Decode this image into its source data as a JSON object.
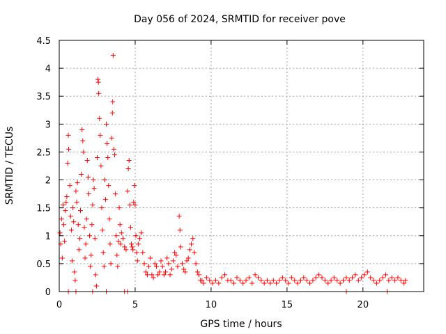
{
  "chart_data": {
    "type": "scatter",
    "title": "Day 056 of 2024, SRMTID for receiver pove",
    "xlabel": "GPS time / hours",
    "ylabel": "SRMTID / TECUs",
    "xlim": [
      0,
      24
    ],
    "ylim": [
      0,
      4.5
    ],
    "x_ticks": [
      "0",
      "5",
      "10",
      "15",
      "20"
    ],
    "y_ticks": [
      "0",
      "0.5",
      "1",
      "1.5",
      "2",
      "2.5",
      "3",
      "3.5",
      "4",
      "4.5"
    ],
    "grid": true,
    "marker": "plus",
    "color": "#ff0000",
    "series": [
      {
        "points": [
          [
            0.05,
            1.05
          ],
          [
            0.1,
            0.85
          ],
          [
            0.15,
            1.3
          ],
          [
            0.2,
            0.6
          ],
          [
            0.25,
            1.55
          ],
          [
            0.3,
            1.2
          ],
          [
            0.35,
            0.9
          ],
          [
            0.4,
            1.45
          ],
          [
            0.45,
            1.6
          ],
          [
            0.5,
            1.7
          ],
          [
            0.55,
            2.3
          ],
          [
            0.6,
            2.8
          ],
          [
            0.62,
            2.55
          ],
          [
            0.7,
            1.9
          ],
          [
            0.75,
            1.35
          ],
          [
            0.8,
            1.1
          ],
          [
            0.85,
            0.55
          ],
          [
            0.9,
            1.5
          ],
          [
            0.95,
            1.25
          ],
          [
            1.0,
            0.35
          ],
          [
            1.05,
            0.2
          ],
          [
            1.1,
            1.8
          ],
          [
            1.15,
            1.6
          ],
          [
            1.2,
            1.95
          ],
          [
            1.25,
            1.2
          ],
          [
            1.3,
            0.75
          ],
          [
            1.35,
            0.95
          ],
          [
            1.4,
            1.45
          ],
          [
            1.45,
            2.1
          ],
          [
            1.5,
            2.9
          ],
          [
            1.55,
            2.7
          ],
          [
            1.6,
            2.5
          ],
          [
            1.65,
            1.15
          ],
          [
            1.7,
            0.6
          ],
          [
            1.75,
            0.85
          ],
          [
            1.8,
            1.3
          ],
          [
            1.85,
            2.35
          ],
          [
            1.9,
            2.05
          ],
          [
            1.95,
            1.75
          ],
          [
            2.0,
            1.0
          ],
          [
            2.05,
            0.45
          ],
          [
            2.1,
            0.65
          ],
          [
            2.15,
            1.2
          ],
          [
            2.2,
            1.55
          ],
          [
            2.25,
            2.0
          ],
          [
            2.3,
            1.85
          ],
          [
            2.35,
            0.95
          ],
          [
            2.4,
            0.3
          ],
          [
            2.45,
            0.1
          ],
          [
            2.5,
            2.4
          ],
          [
            2.55,
            3.8
          ],
          [
            2.58,
            3.75
          ],
          [
            2.6,
            3.55
          ],
          [
            2.65,
            3.1
          ],
          [
            2.7,
            2.8
          ],
          [
            2.75,
            2.25
          ],
          [
            2.8,
            1.5
          ],
          [
            2.85,
            1.1
          ],
          [
            2.9,
            0.7
          ],
          [
            2.95,
            0.45
          ],
          [
            3.0,
            2.0
          ],
          [
            3.05,
            1.65
          ],
          [
            3.1,
            3.0
          ],
          [
            3.15,
            2.65
          ],
          [
            3.2,
            2.4
          ],
          [
            3.25,
            1.9
          ],
          [
            3.3,
            1.3
          ],
          [
            3.35,
            0.85
          ],
          [
            3.4,
            0.5
          ],
          [
            3.45,
            2.75
          ],
          [
            3.5,
            3.2
          ],
          [
            3.52,
            3.4
          ],
          [
            3.55,
            4.23
          ],
          [
            3.6,
            2.55
          ],
          [
            3.65,
            2.45
          ],
          [
            3.7,
            1.75
          ],
          [
            3.75,
            1.0
          ],
          [
            3.8,
            0.65
          ],
          [
            3.85,
            0.45
          ],
          [
            3.9,
            0.9
          ],
          [
            3.95,
            1.5
          ],
          [
            4.0,
            1.2
          ],
          [
            4.05,
            0.85
          ],
          [
            4.1,
            1.05
          ],
          [
            4.2,
            0.95
          ],
          [
            4.3,
            0.8
          ],
          [
            4.4,
            0.75
          ],
          [
            4.5,
            1.8
          ],
          [
            4.55,
            2.2
          ],
          [
            4.6,
            2.35
          ],
          [
            4.65,
            1.55
          ],
          [
            4.7,
            1.15
          ],
          [
            4.75,
            0.85
          ],
          [
            4.8,
            0.8
          ],
          [
            4.85,
            0.75
          ],
          [
            4.9,
            1.6
          ],
          [
            4.95,
            1.9
          ],
          [
            5.0,
            1.55
          ],
          [
            5.05,
            1.0
          ],
          [
            5.1,
            0.7
          ],
          [
            5.15,
            0.55
          ],
          [
            5.2,
            0.85
          ],
          [
            5.3,
            0.95
          ],
          [
            5.4,
            1.05
          ],
          [
            5.5,
            0.7
          ],
          [
            5.6,
            0.5
          ],
          [
            5.7,
            0.35
          ],
          [
            5.8,
            0.3
          ],
          [
            5.9,
            0.45
          ],
          [
            6.0,
            0.6
          ],
          [
            6.1,
            0.3
          ],
          [
            6.2,
            0.25
          ],
          [
            6.3,
            0.5
          ],
          [
            6.4,
            0.45
          ],
          [
            6.5,
            0.3
          ],
          [
            6.6,
            0.35
          ],
          [
            6.7,
            0.55
          ],
          [
            6.8,
            0.45
          ],
          [
            6.9,
            0.3
          ],
          [
            7.0,
            0.35
          ],
          [
            7.1,
            0.6
          ],
          [
            7.2,
            0.5
          ],
          [
            7.3,
            0.3
          ],
          [
            7.4,
            0.4
          ],
          [
            7.5,
            0.55
          ],
          [
            7.6,
            0.7
          ],
          [
            7.7,
            0.65
          ],
          [
            7.8,
            0.45
          ],
          [
            7.9,
            1.35
          ],
          [
            7.95,
            1.1
          ],
          [
            8.0,
            0.8
          ],
          [
            8.1,
            0.5
          ],
          [
            8.2,
            0.4
          ],
          [
            8.3,
            0.35
          ],
          [
            8.4,
            0.55
          ],
          [
            8.5,
            0.6
          ],
          [
            8.6,
            0.75
          ],
          [
            8.7,
            0.85
          ],
          [
            8.8,
            0.95
          ],
          [
            8.9,
            0.7
          ],
          [
            9.0,
            0.5
          ],
          [
            9.1,
            0.35
          ],
          [
            9.2,
            0.3
          ],
          [
            9.3,
            0.2
          ],
          [
            9.4,
            0.2
          ],
          [
            9.5,
            0.15
          ],
          [
            9.7,
            0.25
          ],
          [
            9.9,
            0.2
          ],
          [
            10.1,
            0.15
          ],
          [
            10.3,
            0.2
          ],
          [
            10.5,
            0.15
          ],
          [
            10.7,
            0.25
          ],
          [
            10.9,
            0.3
          ],
          [
            11.1,
            0.2
          ],
          [
            11.3,
            0.2
          ],
          [
            11.5,
            0.15
          ],
          [
            11.7,
            0.25
          ],
          [
            11.9,
            0.2
          ],
          [
            12.1,
            0.15
          ],
          [
            12.3,
            0.2
          ],
          [
            12.5,
            0.25
          ],
          [
            12.7,
            0.15
          ],
          [
            12.9,
            0.3
          ],
          [
            13.1,
            0.25
          ],
          [
            13.3,
            0.2
          ],
          [
            13.5,
            0.15
          ],
          [
            13.7,
            0.2
          ],
          [
            13.9,
            0.15
          ],
          [
            14.1,
            0.2
          ],
          [
            14.3,
            0.15
          ],
          [
            14.5,
            0.2
          ],
          [
            14.7,
            0.25
          ],
          [
            14.9,
            0.2
          ],
          [
            15.1,
            0.15
          ],
          [
            15.3,
            0.25
          ],
          [
            15.5,
            0.2
          ],
          [
            15.7,
            0.15
          ],
          [
            15.9,
            0.2
          ],
          [
            16.1,
            0.25
          ],
          [
            16.3,
            0.2
          ],
          [
            16.5,
            0.15
          ],
          [
            16.7,
            0.2
          ],
          [
            16.9,
            0.25
          ],
          [
            17.1,
            0.3
          ],
          [
            17.3,
            0.25
          ],
          [
            17.5,
            0.2
          ],
          [
            17.7,
            0.15
          ],
          [
            17.9,
            0.2
          ],
          [
            18.1,
            0.25
          ],
          [
            18.3,
            0.2
          ],
          [
            18.5,
            0.15
          ],
          [
            18.7,
            0.2
          ],
          [
            18.9,
            0.25
          ],
          [
            19.1,
            0.2
          ],
          [
            19.3,
            0.25
          ],
          [
            19.5,
            0.3
          ],
          [
            19.7,
            0.2
          ],
          [
            19.9,
            0.25
          ],
          [
            20.1,
            0.3
          ],
          [
            20.3,
            0.35
          ],
          [
            20.5,
            0.25
          ],
          [
            20.7,
            0.2
          ],
          [
            20.9,
            0.15
          ],
          [
            21.1,
            0.2
          ],
          [
            21.3,
            0.25
          ],
          [
            21.5,
            0.3
          ],
          [
            21.7,
            0.2
          ],
          [
            21.9,
            0.25
          ],
          [
            22.1,
            0.2
          ],
          [
            22.3,
            0.25
          ],
          [
            22.5,
            0.2
          ],
          [
            22.7,
            0.15
          ],
          [
            22.8,
            0.2
          ],
          [
            0.6,
            0.0
          ],
          [
            1.1,
            0.0
          ],
          [
            2.2,
            0.0
          ],
          [
            3.1,
            0.0
          ],
          [
            4.3,
            0.0
          ],
          [
            4.5,
            0.0
          ],
          [
            18.9,
            0.0
          ],
          [
            21.6,
            0.0
          ]
        ]
      }
    ]
  }
}
